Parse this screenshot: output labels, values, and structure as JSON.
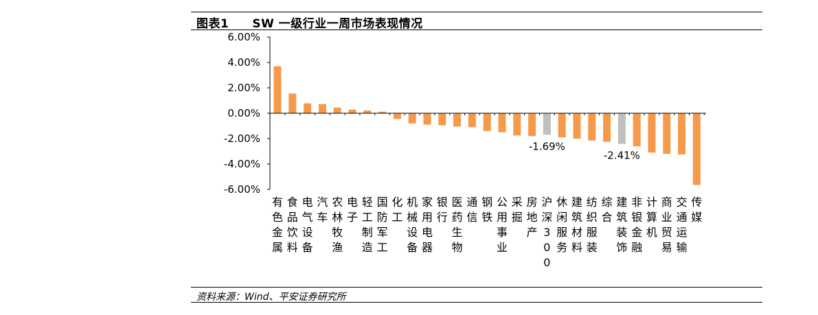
{
  "header": {
    "figure_label": "图表1",
    "title": "SW 一级行业一周市场表现情况"
  },
  "footer": {
    "source": "资料来源：Wind、平安证券研究所"
  },
  "colors": {
    "bar": "#F59A4A",
    "highlight": "#BFBFBF",
    "axis": "#000000"
  },
  "chart_data": {
    "type": "bar",
    "ylim": [
      -0.06,
      0.06
    ],
    "y_tick_values": [
      0.06,
      0.04,
      0.02,
      0,
      -0.02,
      -0.04,
      -0.06
    ],
    "y_tick_labels": [
      "6.00%",
      "4.00%",
      "2.00%",
      "0.00%",
      "-2.00%",
      "-4.00%",
      "-6.00%"
    ],
    "grid": false,
    "categories": [
      "有色金属",
      "食品饮料",
      "电气设备",
      "汽车",
      "农林牧渔",
      "电子",
      "轻工制造",
      "国防军工",
      "化工",
      "机械设备",
      "家用电器",
      "银行",
      "医药生物",
      "通信",
      "钢铁",
      "公用事业",
      "采掘",
      "房地产",
      "沪深300",
      "休闲服务",
      "建筑材料",
      "纺织服装",
      "综合",
      "建筑装饰",
      "非银金融",
      "计算机",
      "商业贸易",
      "交通运输",
      "传媒"
    ],
    "values": [
      0.037,
      0.0155,
      0.0078,
      0.0072,
      0.0045,
      0.0028,
      0.0022,
      0.0012,
      -0.0045,
      -0.008,
      -0.009,
      -0.0095,
      -0.0105,
      -0.011,
      -0.014,
      -0.015,
      -0.0175,
      -0.018,
      -0.0169,
      -0.019,
      -0.02,
      -0.0215,
      -0.0225,
      -0.0241,
      -0.026,
      -0.031,
      -0.032,
      -0.0325,
      -0.0565
    ],
    "highlighted": [
      "沪深300",
      "建筑装饰"
    ],
    "data_labels": [
      {
        "category": "沪深300",
        "text": "-1.69%"
      },
      {
        "category": "建筑装饰",
        "text": "-2.41%"
      }
    ]
  }
}
